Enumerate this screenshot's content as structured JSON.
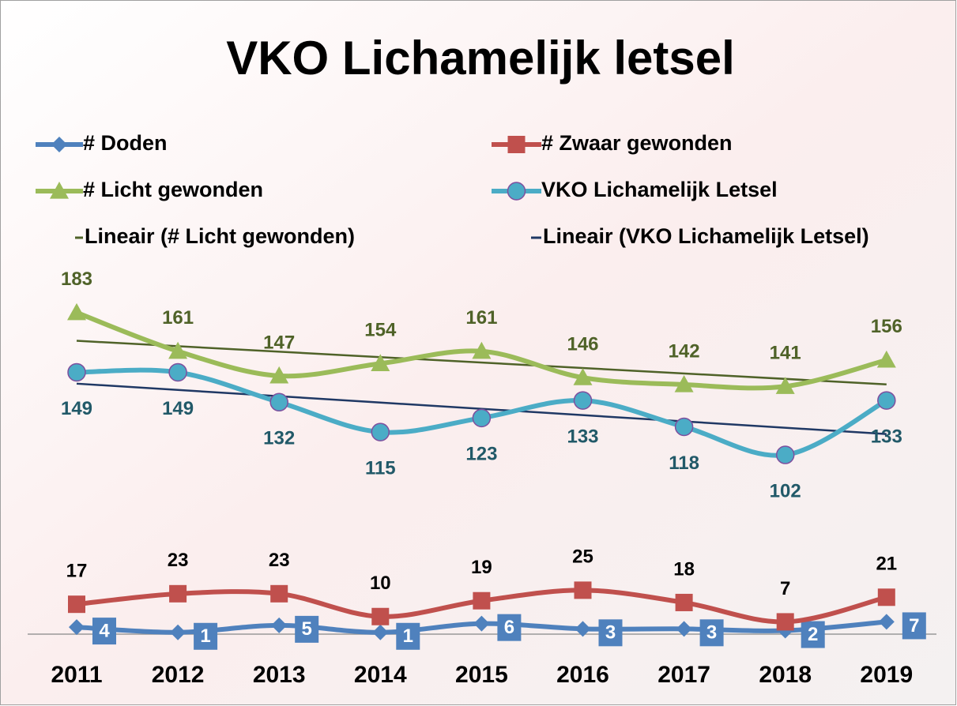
{
  "chart_data": {
    "type": "line",
    "title": "VKO Lichamelijk letsel",
    "categories": [
      "2011",
      "2012",
      "2013",
      "2014",
      "2015",
      "2016",
      "2017",
      "2018",
      "2019"
    ],
    "series": [
      {
        "name": "# Doden",
        "color": "#4f81bd",
        "marker": "diamond",
        "values": [
          4,
          1,
          5,
          1,
          6,
          3,
          3,
          2,
          7
        ]
      },
      {
        "name": "# Zwaar gewonden",
        "color": "#c0504d",
        "marker": "square",
        "values": [
          17,
          23,
          23,
          10,
          19,
          25,
          18,
          7,
          21
        ]
      },
      {
        "name": "# Licht gewonden",
        "color": "#9bbb59",
        "marker": "triangle",
        "values": [
          183,
          161,
          147,
          154,
          161,
          146,
          142,
          141,
          156
        ]
      },
      {
        "name": "VKO Lichamelijk Letsel",
        "color": "#4bacc6",
        "marker": "circle",
        "values": [
          149,
          149,
          132,
          115,
          123,
          133,
          118,
          102,
          133
        ]
      }
    ],
    "trendlines": [
      {
        "name": "Lineair (# Licht gewonden)",
        "color": "#4f6228"
      },
      {
        "name": "Lineair (VKO Lichamelijk Letsel)",
        "color": "#1f3864"
      }
    ],
    "ylim": [
      0,
      200
    ]
  }
}
